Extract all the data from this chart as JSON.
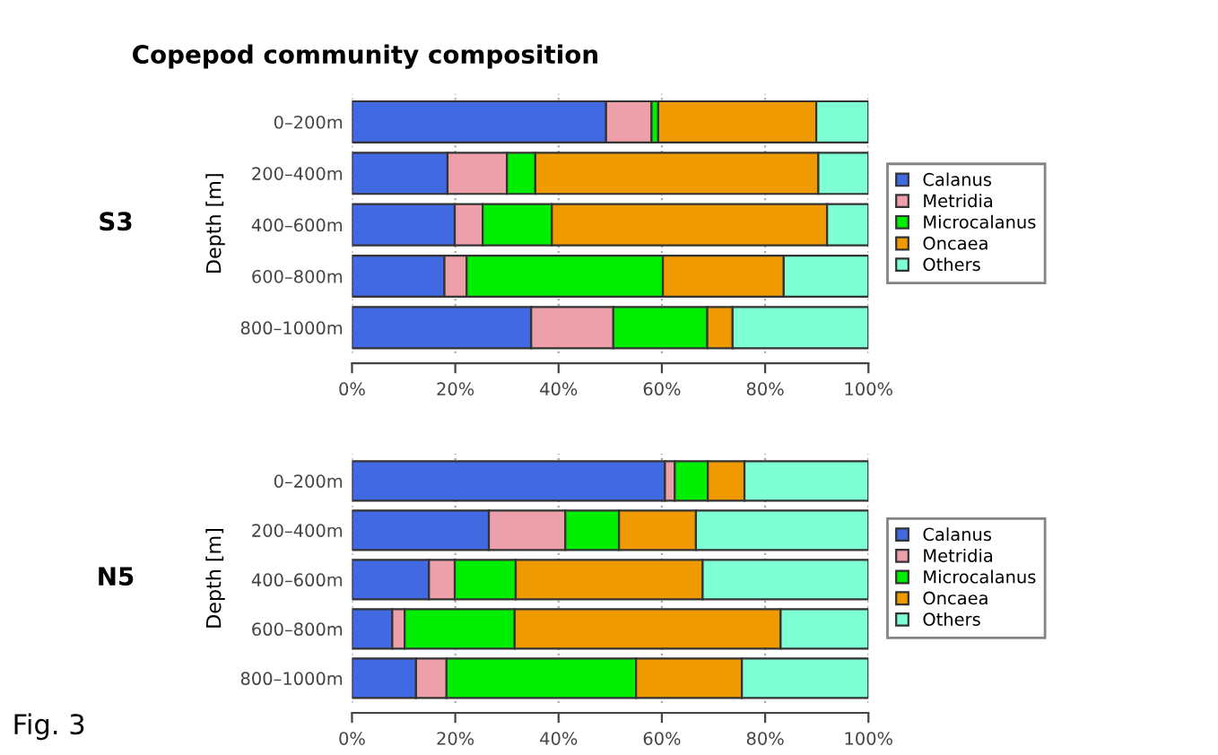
{
  "chart_data": [
    {
      "type": "bar",
      "orientation": "horizontal",
      "stacked": true,
      "title": "Copepod community composition",
      "subtitle": "S3",
      "ylabel": "Depth [m]",
      "categories": [
        "0–200m",
        "200–400m",
        "400–600m",
        "600–800m",
        "800–1000m"
      ],
      "series": [
        {
          "name": "Calanus",
          "color": "#4169e1",
          "values": [
            49.2,
            18.5,
            19.9,
            17.9,
            34.7
          ]
        },
        {
          "name": "Metridia",
          "color": "#eea0aa",
          "values": [
            8.8,
            11.5,
            5.4,
            4.3,
            15.9
          ]
        },
        {
          "name": "Microcalanus",
          "color": "#00ee00",
          "values": [
            1.3,
            5.5,
            13.4,
            38.0,
            18.2
          ]
        },
        {
          "name": "Oncaea",
          "color": "#ee9a00",
          "values": [
            30.6,
            54.8,
            53.3,
            23.4,
            4.9
          ]
        },
        {
          "name": "Others",
          "color": "#7fffd4",
          "values": [
            10.1,
            9.7,
            8.0,
            16.4,
            26.3
          ]
        }
      ],
      "xlim": [
        0,
        100
      ],
      "xticks": [
        {
          "value": 0,
          "label": "0%"
        },
        {
          "value": 20,
          "label": "20%"
        },
        {
          "value": 40,
          "label": "40%"
        },
        {
          "value": 60,
          "label": "60%"
        },
        {
          "value": 80,
          "label": "80%"
        },
        {
          "value": 100,
          "label": "100%"
        }
      ],
      "grid": "x",
      "legend": "right"
    },
    {
      "type": "bar",
      "orientation": "horizontal",
      "stacked": true,
      "subtitle": "N5",
      "ylabel": "Depth [m]",
      "categories": [
        "0–200m",
        "200–400m",
        "400–600m",
        "600–800m",
        "800–1000m"
      ],
      "series": [
        {
          "name": "Calanus",
          "color": "#4169e1",
          "values": [
            60.6,
            26.5,
            14.9,
            7.8,
            12.4
          ]
        },
        {
          "name": "Metridia",
          "color": "#eea0aa",
          "values": [
            1.9,
            14.8,
            5.0,
            2.4,
            5.9
          ]
        },
        {
          "name": "Microcalanus",
          "color": "#00ee00",
          "values": [
            6.4,
            10.4,
            11.8,
            21.3,
            36.7
          ]
        },
        {
          "name": "Oncaea",
          "color": "#ee9a00",
          "values": [
            7.1,
            14.9,
            36.2,
            51.5,
            20.5
          ]
        },
        {
          "name": "Others",
          "color": "#7fffd4",
          "values": [
            24.0,
            33.4,
            32.1,
            17.0,
            24.5
          ]
        }
      ],
      "xlim": [
        0,
        100
      ],
      "xticks": [
        {
          "value": 0,
          "label": "0%"
        },
        {
          "value": 20,
          "label": "20%"
        },
        {
          "value": 40,
          "label": "40%"
        },
        {
          "value": 60,
          "label": "60%"
        },
        {
          "value": 80,
          "label": "80%"
        },
        {
          "value": 100,
          "label": "100%"
        }
      ],
      "grid": "x",
      "legend": "right",
      "annotations": [
        "Fig. 3"
      ]
    }
  ]
}
